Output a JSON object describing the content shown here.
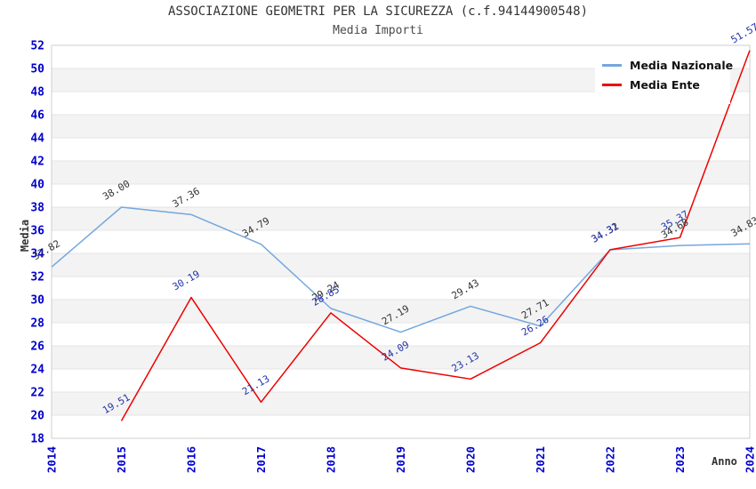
{
  "header": {
    "title": "ASSOCIAZIONE GEOMETRI PER LA SICUREZZA (c.f.94144900548)",
    "subtitle": "Media Importi"
  },
  "legend": {
    "items": [
      {
        "label": "Media Nazionale",
        "color": "#74a7dc"
      },
      {
        "label": "Media Ente",
        "color": "#ee0000"
      }
    ]
  },
  "axes": {
    "y_title": "Media",
    "x_title": "Anno",
    "tick_color": "#0000cc",
    "y_ticks": [
      52,
      50,
      48,
      46,
      44,
      42,
      40,
      38,
      36,
      34,
      32,
      30,
      28,
      26,
      24,
      22,
      20,
      18
    ],
    "x_ticks": [
      "2014",
      "2015",
      "2016",
      "2017",
      "2018",
      "2019",
      "2020",
      "2021",
      "2022",
      "2023",
      "2024"
    ]
  },
  "style": {
    "band_fill": "#f3f3f3",
    "gridline_color": "#e4e4e4",
    "border_color": "#cfcfcf"
  },
  "chart_data": {
    "type": "line",
    "title": "ASSOCIAZIONE GEOMETRI PER LA SICUREZZA (c.f.94144900548)",
    "subtitle": "Media Importi",
    "xlabel": "Anno",
    "ylabel": "Media",
    "ylim": [
      18,
      52
    ],
    "y_tick_step": 2,
    "x_categories": [
      2014,
      2015,
      2016,
      2017,
      2018,
      2019,
      2020,
      2021,
      2022,
      2023,
      2024
    ],
    "grid": "horizontal gridlines every 2 units with alternating light-gray bands",
    "legend_position": "top-right",
    "series": [
      {
        "name": "Media Nazionale",
        "color": "#74a7dc",
        "label_color": "#333333",
        "points": [
          {
            "x": 2014,
            "y": 32.82,
            "label": "32.82"
          },
          {
            "x": 2015,
            "y": 38.0,
            "label": "38.00"
          },
          {
            "x": 2016,
            "y": 37.36,
            "label": "37.36"
          },
          {
            "x": 2017,
            "y": 34.79,
            "label": "34.79"
          },
          {
            "x": 2018,
            "y": 29.24,
            "label": "29.24"
          },
          {
            "x": 2019,
            "y": 27.19,
            "label": "27.19"
          },
          {
            "x": 2020,
            "y": 29.43,
            "label": "29.43"
          },
          {
            "x": 2021,
            "y": 27.71,
            "label": "27.71"
          },
          {
            "x": 2022,
            "y": 34.31,
            "label": "34.31"
          },
          {
            "x": 2023,
            "y": 34.68,
            "label": "34.68"
          },
          {
            "x": 2024,
            "y": 34.83,
            "label": "34.83"
          }
        ]
      },
      {
        "name": "Media Ente",
        "color": "#ee0000",
        "label_color": "#2233aa",
        "points": [
          {
            "x": 2015,
            "y": 19.51,
            "label": "19.51"
          },
          {
            "x": 2016,
            "y": 30.19,
            "label": "30.19"
          },
          {
            "x": 2017,
            "y": 21.13,
            "label": "21.13"
          },
          {
            "x": 2018,
            "y": 28.85,
            "label": "28.85"
          },
          {
            "x": 2019,
            "y": 24.09,
            "label": "24.09"
          },
          {
            "x": 2020,
            "y": 23.13,
            "label": "23.13"
          },
          {
            "x": 2021,
            "y": 26.26,
            "label": "26.26"
          },
          {
            "x": 2022,
            "y": 34.32,
            "label": "34.32"
          },
          {
            "x": 2023,
            "y": 35.37,
            "label": "35.37"
          },
          {
            "x": 2024,
            "y": 51.57,
            "label": "51.57"
          }
        ]
      }
    ]
  }
}
